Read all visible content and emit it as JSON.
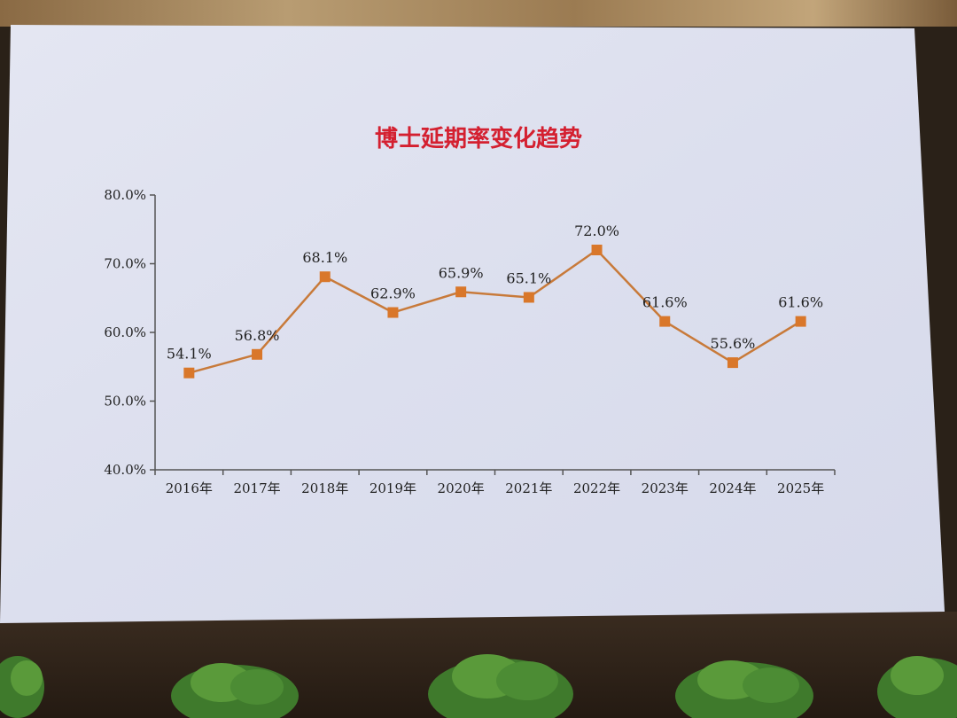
{
  "chart_data": {
    "type": "line",
    "title": "博士延期率变化趋势",
    "categories": [
      "2016年",
      "2017年",
      "2018年",
      "2019年",
      "2020年",
      "2021年",
      "2022年",
      "2023年",
      "2024年",
      "2025年"
    ],
    "series": [
      {
        "values": [
          54.1,
          56.8,
          68.1,
          62.9,
          65.9,
          65.1,
          72.0,
          61.6,
          55.6,
          61.6
        ],
        "labels": [
          "54.1%",
          "56.8%",
          "68.1%",
          "62.9%",
          "65.9%",
          "65.1%",
          "72.0%",
          "61.6%",
          "55.6%",
          "61.6%"
        ]
      }
    ],
    "yticks": [
      "40.0%",
      "50.0%",
      "60.0%",
      "70.0%",
      "80.0%"
    ],
    "ylim": [
      40,
      80
    ],
    "grid": false,
    "legend": "none",
    "colors": {
      "title": "#d42030",
      "line": "#c87a3a",
      "marker": "#d9772a",
      "axis": "#555555",
      "text": "#222222"
    }
  }
}
